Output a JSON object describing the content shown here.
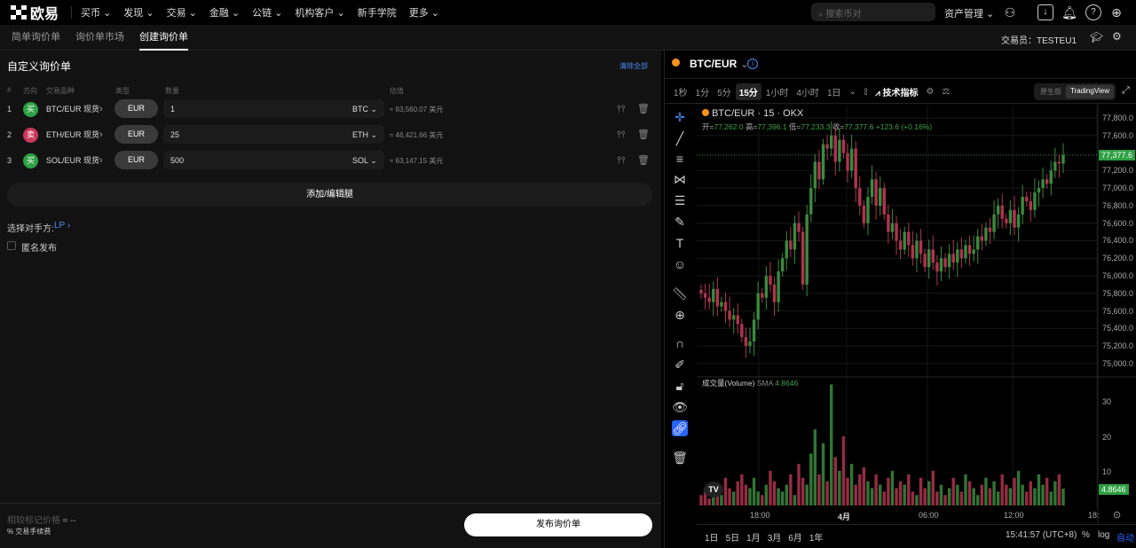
{
  "nav": {
    "logo": "欧易",
    "items": [
      "买币",
      "发现",
      "交易",
      "金融",
      "公链",
      "机构客户",
      "新手学院",
      "更多"
    ],
    "search_placeholder": "搜索币对",
    "assets": "资产管理"
  },
  "subnav": {
    "tabs": [
      "简单询价单",
      "询价单市场",
      "创建询价单"
    ],
    "active": 2,
    "trader_label": "交易员：",
    "trader": "TESTEU1"
  },
  "form": {
    "title": "自定义询价单",
    "clear_all": "清除全部",
    "headers": [
      "#",
      "方向",
      "交易品种",
      "类型",
      "数量",
      "估值"
    ],
    "legs": [
      {
        "n": "1",
        "side": "买",
        "side_color": "#2ea043",
        "instrument": "BTC/EUR 现货",
        "type": "EUR",
        "qty": "1",
        "unit": "BTC",
        "est": "≈ 83,560.07 美元"
      },
      {
        "n": "2",
        "side": "卖",
        "side_color": "#c9385a",
        "instrument": "ETH/EUR 现货",
        "type": "EUR",
        "qty": "25",
        "unit": "ETH",
        "est": "≈ 46,421.66 美元"
      },
      {
        "n": "3",
        "side": "买",
        "side_color": "#2ea043",
        "instrument": "SOL/EUR 现货",
        "type": "EUR",
        "qty": "500",
        "unit": "SOL",
        "est": "≈ 63,147.15 美元"
      }
    ],
    "add_edit": "添加/编辑腿",
    "counterparty_label": "选择对手方:",
    "counterparty_value": "LP",
    "anonymous": "匿名发布",
    "mark_price_label": "相较标记价格",
    "mark_price_value": "≈ --",
    "fee_label": "交易手续费",
    "submit": "发布询价单"
  },
  "chart": {
    "pair": "BTC/EUR",
    "legend": "BTC/EUR · 15 · OKX",
    "ohlc": {
      "o_label": "开=",
      "o": "77,262.0",
      "h_label": "高=",
      "h": "77,396.1",
      "l_label": "低=",
      "l": "77,233.3",
      "c_label": "收=",
      "c": "77,377.6",
      "chg": "+123.6 (+0.16%)"
    },
    "timeframes": [
      "1秒",
      "1分",
      "5分",
      "15分",
      "1小时",
      "4小时",
      "1日"
    ],
    "active_tf": "15分",
    "indicators": "技术指标",
    "view_tabs": [
      "原生版",
      "TradingView"
    ],
    "price_ticks": [
      "77,800.0",
      "77,600.0",
      "77,200.0",
      "77,000.0",
      "76,800.0",
      "76,600.0",
      "76,400.0",
      "76,200.0",
      "76,000.0",
      "75,800.0",
      "75,600.0",
      "75,400.0",
      "75,200.0",
      "75,000.0"
    ],
    "last_price": "77,377.6",
    "volume_label": "成交量(Volume)",
    "volume_sma": "SMA",
    "volume_value": "4.8646",
    "volume_ticks": [
      "30",
      "20",
      "10"
    ],
    "time_ticks": [
      "18:00",
      "4月",
      "06:00",
      "12:00",
      "18:"
    ],
    "ranges": [
      "1日",
      "5日",
      "1月",
      "3月",
      "6月",
      "1年"
    ],
    "clock": "15:41:57 (UTC+8)",
    "pct": "%",
    "log": "log",
    "auto": "自动",
    "up_color": "#3a8a3e",
    "down_color": "#b0344f",
    "closes": [
      75800,
      75750,
      75700,
      75850,
      75650,
      75700,
      75600,
      75500,
      75550,
      75450,
      75300,
      75200,
      75250,
      75500,
      75800,
      75750,
      76000,
      75900,
      75700,
      76050,
      76200,
      76400,
      76300,
      76600,
      76500,
      75900,
      76700,
      77000,
      77300,
      77100,
      77500,
      77450,
      77600,
      77300,
      77550,
      77400,
      77200,
      77450,
      77000,
      76800,
      76600,
      76900,
      77100,
      76800,
      77000,
      76700,
      76500,
      76600,
      76400,
      76300,
      76500,
      76350,
      76200,
      76400,
      76250,
      76100,
      76300,
      76150,
      76050,
      76200,
      76100,
      76250,
      76150,
      76300,
      76200,
      76350,
      76250,
      76300,
      76450,
      76400,
      76550,
      76500,
      76700,
      76800,
      76650,
      76600,
      76750,
      76550,
      76700,
      76900,
      76850,
      76750,
      76950,
      77000,
      77100,
      77050,
      77200,
      77300,
      77280,
      77377.6
    ],
    "volumes": [
      3,
      5,
      2,
      4,
      6,
      3,
      8,
      5,
      4,
      7,
      9,
      6,
      5,
      8,
      4,
      3,
      6,
      10,
      7,
      5,
      4,
      6,
      9,
      3,
      12,
      8,
      6,
      15,
      22,
      9,
      18,
      7,
      35,
      14,
      10,
      20,
      8,
      12,
      6,
      9,
      11,
      7,
      5,
      9,
      6,
      4,
      8,
      10,
      5,
      7,
      6,
      9,
      4,
      3,
      8,
      5,
      7,
      10,
      4,
      6,
      3,
      5,
      8,
      6,
      4,
      9,
      7,
      5,
      3,
      6,
      8,
      5,
      7,
      4,
      9,
      6,
      5,
      8,
      10,
      6,
      4,
      7,
      5,
      9,
      6,
      8,
      4,
      7,
      9,
      4.8646
    ]
  }
}
